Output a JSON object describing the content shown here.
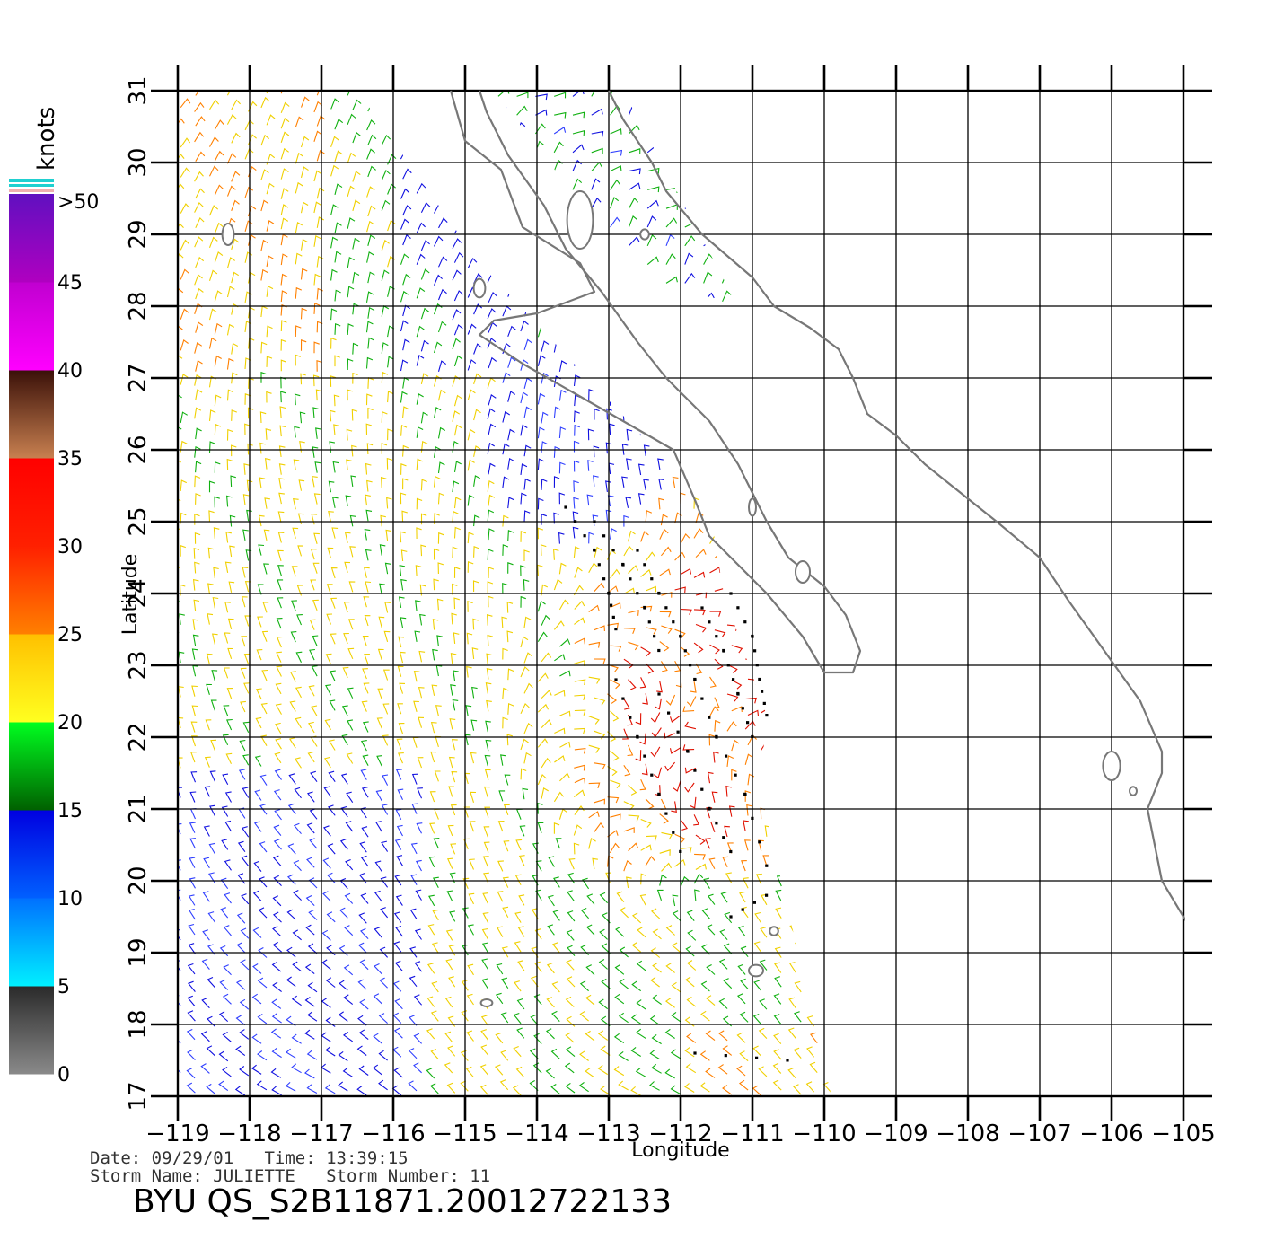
{
  "colorbar": {
    "unit_label": "knots",
    "tick_labels": [
      ">50",
      "45",
      "40",
      "35",
      "30",
      "25",
      "20",
      "15",
      "10",
      "5",
      "0"
    ],
    "bands": [
      {
        "range": "0-5",
        "colors": [
          "#8a8a8a",
          "#2a2a2a"
        ]
      },
      {
        "range": "5-10",
        "colors": [
          "#00f0ff",
          "#0070ff"
        ]
      },
      {
        "range": "10-15",
        "colors": [
          "#0060ff",
          "#0000e0"
        ]
      },
      {
        "range": "15-20",
        "colors": [
          "#006000",
          "#00ff20"
        ]
      },
      {
        "range": "20-25",
        "colors": [
          "#ffff20",
          "#ffc000"
        ]
      },
      {
        "range": "25-30",
        "colors": [
          "#ff8000",
          "#ff2000"
        ]
      },
      {
        "range": "30-35",
        "colors": [
          "#ff2000",
          "#ff0000"
        ]
      },
      {
        "range": "35-40",
        "colors": [
          "#c88050",
          "#3a1008"
        ]
      },
      {
        "range": "40-45",
        "colors": [
          "#ff00ff",
          "#c000d0"
        ]
      },
      {
        "range": "45-50",
        "colors": [
          "#b000c0",
          "#6010c0"
        ]
      }
    ],
    "cap_colors": [
      "#20d0d0",
      "#f0b0b0"
    ]
  },
  "chart_data": {
    "type": "wind-vector-map",
    "xlabel": "Longitude",
    "ylabel": "Latitude",
    "xlim": [
      -119,
      -105
    ],
    "ylim": [
      17,
      31
    ],
    "x_ticks": [
      "-119",
      "-118",
      "-117",
      "-116",
      "-115",
      "-114",
      "-113",
      "-112",
      "-111",
      "-110",
      "-109",
      "-108",
      "-107",
      "-106",
      "-105"
    ],
    "y_ticks": [
      "17",
      "18",
      "19",
      "20",
      "21",
      "22",
      "23",
      "24",
      "25",
      "26",
      "27",
      "28",
      "29",
      "30",
      "31"
    ],
    "grid": true,
    "swath_outline_deg": [
      [
        -119,
        31
      ],
      [
        -116.5,
        31
      ],
      [
        -114.8,
        28.6
      ],
      [
        -111.6,
        25.2
      ],
      [
        -111.4,
        24.0
      ],
      [
        -110.8,
        22.3
      ],
      [
        -110.9,
        21.3
      ],
      [
        -109.9,
        17
      ],
      [
        -119,
        17
      ]
    ],
    "gulf_vectors_region_deg": [
      [
        -114.6,
        31
      ],
      [
        -112.8,
        31
      ],
      [
        -111.2,
        28.0
      ],
      [
        -112.2,
        28.3
      ],
      [
        -113.6,
        29.7
      ]
    ],
    "coastlines_deg": [
      [
        [
          -115.2,
          31
        ],
        [
          -115.0,
          30.3
        ],
        [
          -114.5,
          29.9
        ],
        [
          -114.2,
          29.1
        ],
        [
          -113.4,
          28.6
        ],
        [
          -113.2,
          28.2
        ],
        [
          -114.0,
          27.9
        ],
        [
          -114.6,
          27.8
        ],
        [
          -114.8,
          27.6
        ],
        [
          -114.2,
          27.2
        ],
        [
          -113.5,
          26.8
        ],
        [
          -112.8,
          26.4
        ],
        [
          -112.1,
          26.0
        ],
        [
          -111.8,
          25.3
        ],
        [
          -111.6,
          24.8
        ],
        [
          -111.2,
          24.4
        ],
        [
          -110.8,
          24.0
        ],
        [
          -110.3,
          23.4
        ],
        [
          -110.0,
          22.9
        ],
        [
          -109.6,
          22.9
        ],
        [
          -109.5,
          23.2
        ],
        [
          -109.7,
          23.7
        ],
        [
          -110.0,
          24.1
        ],
        [
          -110.5,
          24.5
        ],
        [
          -110.8,
          25.0
        ],
        [
          -111.2,
          25.8
        ],
        [
          -111.6,
          26.4
        ],
        [
          -112.2,
          27.0
        ],
        [
          -112.6,
          27.5
        ],
        [
          -113.1,
          28.2
        ],
        [
          -113.6,
          28.8
        ],
        [
          -113.9,
          29.4
        ],
        [
          -114.4,
          30.1
        ],
        [
          -114.7,
          30.7
        ],
        [
          -114.8,
          31
        ]
      ],
      [
        [
          -113.0,
          31
        ],
        [
          -112.8,
          30.6
        ],
        [
          -112.4,
          30.0
        ],
        [
          -112.2,
          29.6
        ],
        [
          -111.7,
          29.0
        ],
        [
          -111.0,
          28.4
        ],
        [
          -110.7,
          28.0
        ],
        [
          -110.2,
          27.7
        ],
        [
          -109.8,
          27.4
        ],
        [
          -109.6,
          27.0
        ],
        [
          -109.4,
          26.5
        ],
        [
          -109.0,
          26.2
        ],
        [
          -108.6,
          25.8
        ],
        [
          -108.1,
          25.4
        ],
        [
          -107.6,
          25.0
        ],
        [
          -107.0,
          24.5
        ],
        [
          -106.6,
          23.9
        ],
        [
          -106.1,
          23.2
        ],
        [
          -105.6,
          22.5
        ],
        [
          -105.3,
          21.8
        ],
        [
          -105.3,
          21.5
        ],
        [
          -105.5,
          21.0
        ],
        [
          -105.4,
          20.5
        ],
        [
          -105.3,
          20.0
        ],
        [
          -105.0,
          19.5
        ],
        [
          -104.8,
          19.2
        ]
      ]
    ],
    "islands_deg": [
      {
        "lon": -118.3,
        "lat": 29.0,
        "rx": 0.08,
        "ry": 0.15
      },
      {
        "lon": -114.8,
        "lat": 28.25,
        "rx": 0.08,
        "ry": 0.13
      },
      {
        "lon": -113.4,
        "lat": 29.2,
        "rx": 0.18,
        "ry": 0.4
      },
      {
        "lon": -112.5,
        "lat": 29.0,
        "rx": 0.06,
        "ry": 0.07
      },
      {
        "lon": -111.0,
        "lat": 25.2,
        "rx": 0.05,
        "ry": 0.12
      },
      {
        "lon": -110.3,
        "lat": 24.3,
        "rx": 0.1,
        "ry": 0.15
      },
      {
        "lon": -106.0,
        "lat": 21.6,
        "rx": 0.12,
        "ry": 0.2
      },
      {
        "lon": -105.7,
        "lat": 21.25,
        "rx": 0.05,
        "ry": 0.06
      },
      {
        "lon": -110.95,
        "lat": 18.75,
        "rx": 0.1,
        "ry": 0.08
      },
      {
        "lon": -110.7,
        "lat": 19.3,
        "rx": 0.06,
        "ry": 0.06
      },
      {
        "lon": -114.7,
        "lat": 18.3,
        "rx": 0.08,
        "ry": 0.05
      }
    ],
    "rain_flag_lines_deg": [
      [
        [
          -113.6,
          25.2
        ],
        [
          -113.2,
          24.6
        ],
        [
          -113.0,
          24.0
        ],
        [
          -112.9,
          23.5
        ]
      ],
      [
        [
          -113.2,
          25.0
        ],
        [
          -112.8,
          24.4
        ],
        [
          -112.5,
          23.8
        ],
        [
          -112.3,
          23.2
        ]
      ],
      [
        [
          -112.6,
          24.6
        ],
        [
          -112.3,
          24.0
        ],
        [
          -112.0,
          23.4
        ],
        [
          -111.8,
          22.8
        ]
      ],
      [
        [
          -111.7,
          23.8
        ],
        [
          -111.4,
          23.2
        ],
        [
          -111.2,
          22.6
        ],
        [
          -111.0,
          22.0
        ]
      ],
      [
        [
          -111.3,
          24.0
        ],
        [
          -111.0,
          23.4
        ],
        [
          -110.9,
          22.8
        ],
        [
          -110.8,
          22.3
        ]
      ],
      [
        [
          -112.9,
          22.8
        ],
        [
          -112.6,
          22.0
        ],
        [
          -112.3,
          21.2
        ],
        [
          -112.0,
          20.4
        ]
      ],
      [
        [
          -112.3,
          22.6
        ],
        [
          -111.9,
          21.8
        ],
        [
          -111.6,
          21.0
        ],
        [
          -111.3,
          20.4
        ]
      ],
      [
        [
          -111.8,
          22.8
        ],
        [
          -111.5,
          22.0
        ],
        [
          -111.1,
          21.2
        ],
        [
          -110.8,
          20.2
        ]
      ],
      [
        [
          -111.3,
          19.5
        ],
        [
          -110.8,
          19.8
        ]
      ],
      [
        [
          -111.8,
          17.6
        ],
        [
          -110.5,
          17.5
        ]
      ]
    ],
    "wind_speed_regions_knots": [
      {
        "area": "north-west offshore (27-31N, 119-115W)",
        "speed": "15-30"
      },
      {
        "area": "central offshore (21-27N, 119-113W)",
        "speed": "20-30"
      },
      {
        "area": "near Baja coast (24-27N)",
        "speed": "5-15"
      },
      {
        "area": "south-east of Cabo San Lucas (20-24N, 113-111W)",
        "speed": "25-35"
      },
      {
        "area": "south-west (17-21N, 119-116W)",
        "speed": "5-15"
      }
    ]
  },
  "footer": {
    "date_line": "Date: 09/29/01   Time: 13:39:15",
    "storm_line": "Storm Name: JULIETTE   Storm Number: 11",
    "title": "BYU QS_S2B11871.20012722133"
  }
}
